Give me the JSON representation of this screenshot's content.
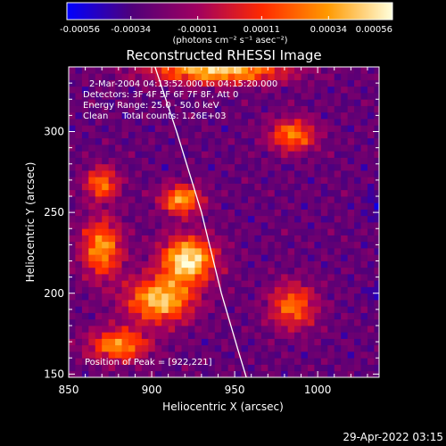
{
  "chart_data": {
    "type": "heatmap",
    "title": "Reconstructed RHESSI Image",
    "xlabel": "Heliocentric X (arcsec)",
    "ylabel": "Heliocentric Y (arcsec)",
    "xlim": [
      850,
      1037
    ],
    "ylim": [
      148,
      340
    ],
    "x_ticks": [
      850,
      900,
      950,
      1000
    ],
    "y_ticks": [
      150,
      200,
      250,
      300
    ],
    "x_tick_labels": [
      "850",
      "900",
      "950",
      "1000"
    ],
    "y_tick_labels": [
      "150",
      "200",
      "250",
      "300"
    ],
    "colorbar": {
      "range": [
        -0.00056,
        0.00056
      ],
      "ticks": [
        -0.00056,
        -0.00034,
        -0.00011,
        0.00011,
        0.00034,
        0.00056
      ],
      "tick_labels": [
        "-0.00056",
        "-0.00034",
        "-0.00011",
        "0.00011",
        "0.00034",
        "0.00056"
      ],
      "unit_label": "(photons cm⁻² s⁻¹ asec⁻²)",
      "colors": [
        "#0000ff",
        "#50007a",
        "#a00060",
        "#ff2a00",
        "#ff9900",
        "#ffffdd"
      ]
    },
    "annotations": [
      "2-Mar-2004 04:13:52.000 to 04:15:20.000",
      "Detectors: 3F 4F 5F 6F 7F 8F, Att 0",
      "Energy Range: 25.0 - 50.0 keV",
      "Clean     Total counts: 1.26E+03"
    ],
    "peak_label": "Position of Peak = [922,221]",
    "peak": [
      922,
      221
    ],
    "limb_curve": [
      [
        902,
        340
      ],
      [
        915,
        300
      ],
      [
        930,
        250
      ],
      [
        942,
        200
      ],
      [
        952,
        165
      ],
      [
        957,
        148
      ]
    ],
    "bright_regions": [
      {
        "x": 922,
        "y": 221,
        "intensity": 0.00056,
        "sx": 16,
        "sy": 14
      },
      {
        "x": 905,
        "y": 196,
        "intensity": 0.00045,
        "sx": 20,
        "sy": 14
      },
      {
        "x": 918,
        "y": 258,
        "intensity": 0.00038,
        "sx": 12,
        "sy": 9
      },
      {
        "x": 940,
        "y": 338,
        "intensity": 0.00046,
        "sx": 40,
        "sy": 8
      },
      {
        "x": 870,
        "y": 228,
        "intensity": 0.00034,
        "sx": 12,
        "sy": 18
      },
      {
        "x": 880,
        "y": 168,
        "intensity": 0.00032,
        "sx": 18,
        "sy": 10
      },
      {
        "x": 985,
        "y": 298,
        "intensity": 0.00028,
        "sx": 14,
        "sy": 10
      },
      {
        "x": 985,
        "y": 192,
        "intensity": 0.00024,
        "sx": 14,
        "sy": 14
      },
      {
        "x": 870,
        "y": 268,
        "intensity": 0.00026,
        "sx": 10,
        "sy": 10
      }
    ],
    "min_regions": [
      {
        "x": 1035,
        "y": 255,
        "intensity": -0.00045,
        "sx": 6,
        "sy": 8
      },
      {
        "x": 1035,
        "y": 200,
        "intensity": -0.0004,
        "sx": 6,
        "sy": 8
      }
    ]
  },
  "footer": {
    "timestamp": "29-Apr-2022 03:15"
  }
}
